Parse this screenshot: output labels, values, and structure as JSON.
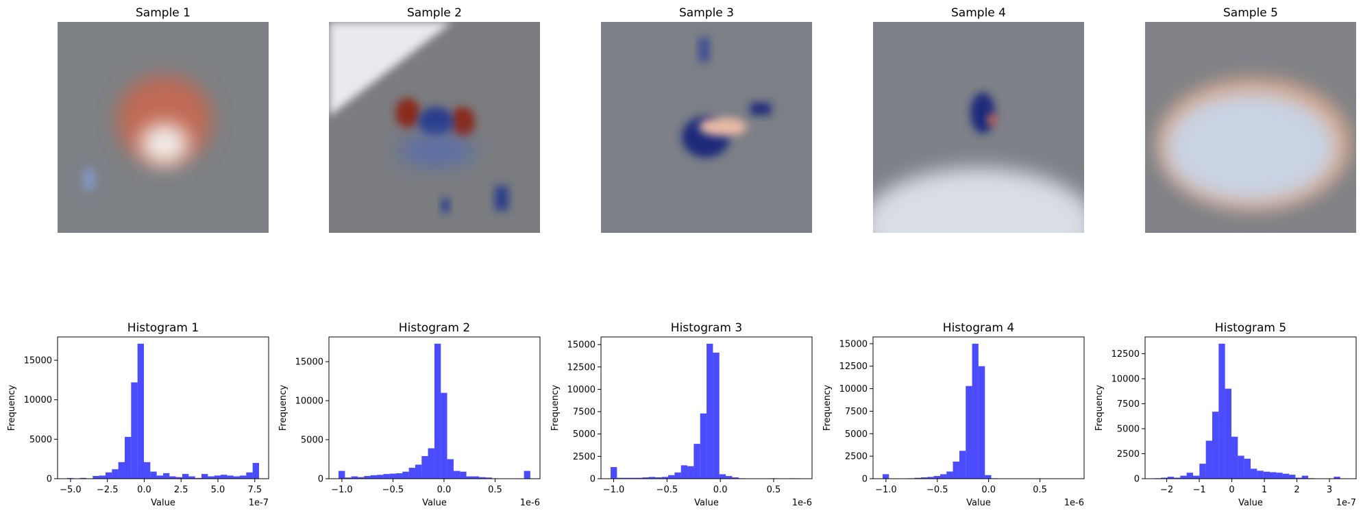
{
  "chart_data": [
    {
      "type": "image",
      "title": "Sample 1"
    },
    {
      "type": "image",
      "title": "Sample 2"
    },
    {
      "type": "image",
      "title": "Sample 3"
    },
    {
      "type": "image",
      "title": "Sample 4"
    },
    {
      "type": "image",
      "title": "Sample 5"
    },
    {
      "type": "histogram",
      "title": "Histogram 1",
      "xlabel": "Value",
      "ylabel": "Frequency",
      "x_offset_label": "1e-7",
      "color": "blue",
      "alpha": 0.7,
      "bins": [
        -5.23,
        -4.796,
        -4.362,
        -3.928,
        -3.494,
        -3.06,
        -2.626,
        -2.192,
        -1.758,
        -1.324,
        -0.89,
        -0.456,
        -0.022,
        0.412,
        0.846,
        1.28,
        1.714,
        2.148,
        2.582,
        3.016,
        3.45,
        3.884,
        4.318,
        4.752,
        5.186,
        5.62,
        6.054,
        6.488,
        6.922,
        7.356,
        7.79
      ],
      "values": [
        80,
        0,
        100,
        0,
        350,
        400,
        800,
        1200,
        2100,
        5300,
        12200,
        17100,
        2100,
        900,
        400,
        700,
        300,
        200,
        600,
        300,
        100,
        600,
        300,
        400,
        500,
        400,
        300,
        400,
        800,
        2000
      ],
      "xlim": [
        -5.88,
        8.44
      ],
      "xticks": [
        {
          "value": -5,
          "label": "−5.0"
        },
        {
          "value": -2.5,
          "label": "−2.5"
        },
        {
          "value": 0,
          "label": "0.0"
        },
        2.5,
        {
          "value": 5,
          "label": "5.0"
        },
        7.5
      ],
      "ylim": [
        0,
        17955
      ],
      "yticks": [
        0,
        5000,
        10000,
        15000
      ]
    },
    {
      "type": "histogram",
      "title": "Histogram 2",
      "xlabel": "Value",
      "ylabel": "Frequency",
      "x_offset_label": "1e-6",
      "color": "blue",
      "alpha": 0.7,
      "bins": [
        -1.033,
        -0.97,
        -0.908,
        -0.845,
        -0.783,
        -0.72,
        -0.657,
        -0.595,
        -0.532,
        -0.47,
        -0.407,
        -0.344,
        -0.282,
        -0.219,
        -0.157,
        -0.094,
        -0.031,
        0.031,
        0.094,
        0.157,
        0.219,
        0.282,
        0.344,
        0.407,
        0.47,
        0.532,
        0.595,
        0.657,
        0.72,
        0.783,
        0.845
      ],
      "values": [
        1000,
        150,
        300,
        200,
        350,
        450,
        500,
        600,
        650,
        700,
        900,
        1400,
        1800,
        2900,
        3900,
        17300,
        11000,
        2500,
        1000,
        900,
        300,
        300,
        200,
        150,
        50,
        30,
        20,
        10,
        0,
        1000
      ],
      "xlim": [
        -1.127,
        0.94
      ],
      "xticks": [
        {
          "value": -1,
          "label": "−1.0"
        },
        {
          "value": -0.5,
          "label": "−0.5"
        },
        {
          "value": 0,
          "label": "0.0"
        },
        0.5
      ],
      "ylim": [
        0,
        18165
      ],
      "yticks": [
        0,
        5000,
        10000,
        15000
      ]
    },
    {
      "type": "histogram",
      "title": "Histogram 3",
      "xlabel": "Value",
      "ylabel": "Frequency",
      "x_offset_label": "1e-6",
      "color": "blue",
      "alpha": 0.7,
      "bins": [
        -1.029,
        -0.969,
        -0.909,
        -0.849,
        -0.789,
        -0.729,
        -0.669,
        -0.609,
        -0.549,
        -0.489,
        -0.429,
        -0.369,
        -0.309,
        -0.249,
        -0.189,
        -0.129,
        -0.069,
        -0.009,
        0.051,
        0.111,
        0.171,
        0.231,
        0.291,
        0.351,
        0.411,
        0.471,
        0.531,
        0.591,
        0.651,
        0.711,
        0.771
      ],
      "values": [
        1300,
        100,
        100,
        100,
        100,
        150,
        200,
        150,
        200,
        400,
        700,
        1500,
        1400,
        3900,
        7300,
        15100,
        14100,
        500,
        300,
        150,
        50,
        30,
        20,
        10,
        0,
        50,
        20,
        0,
        50,
        30
      ],
      "xlim": [
        -1.119,
        0.86
      ],
      "xticks": [
        {
          "value": -1,
          "label": "−1.0"
        },
        {
          "value": -0.5,
          "label": "−0.5"
        },
        {
          "value": 0,
          "label": "0.0"
        },
        0.5
      ],
      "ylim": [
        0,
        15855
      ],
      "yticks": [
        0,
        2500,
        5000,
        7500,
        10000,
        12500,
        15000
      ]
    },
    {
      "type": "histogram",
      "title": "Histogram 4",
      "xlabel": "Value",
      "ylabel": "Frequency",
      "x_offset_label": "1e-6",
      "color": "blue",
      "alpha": 0.7,
      "bins": [
        -1.033,
        -0.971,
        -0.908,
        -0.846,
        -0.784,
        -0.722,
        -0.659,
        -0.597,
        -0.535,
        -0.472,
        -0.41,
        -0.348,
        -0.285,
        -0.223,
        -0.161,
        -0.099,
        -0.036,
        0.026,
        0.088,
        0.151,
        0.213,
        0.275,
        0.338,
        0.4,
        0.462,
        0.525,
        0.587,
        0.649,
        0.711,
        0.774,
        0.836
      ],
      "values": [
        500,
        0,
        10,
        20,
        50,
        100,
        150,
        200,
        300,
        500,
        800,
        1900,
        3100,
        10300,
        15000,
        12500,
        400,
        50,
        20,
        10,
        0,
        30,
        0,
        0,
        10,
        30,
        0,
        20,
        0,
        10
      ],
      "xlim": [
        -1.126,
        0.93
      ],
      "xticks": [
        {
          "value": -1,
          "label": "−1.0"
        },
        {
          "value": -0.5,
          "label": "−0.5"
        },
        {
          "value": 0,
          "label": "0.0"
        },
        0.5
      ],
      "ylim": [
        0,
        15750
      ],
      "yticks": [
        0,
        2500,
        5000,
        7500,
        10000,
        12500,
        15000
      ]
    },
    {
      "type": "histogram",
      "title": "Histogram 5",
      "xlabel": "Value",
      "ylabel": "Frequency",
      "x_offset_label": "1e-7",
      "color": "blue",
      "alpha": 0.7,
      "bins": [
        -2.37,
        -2.174,
        -1.977,
        -1.781,
        -1.584,
        -1.388,
        -1.191,
        -0.995,
        -0.798,
        -0.602,
        -0.405,
        -0.209,
        -0.012,
        0.185,
        0.381,
        0.578,
        0.774,
        0.971,
        1.167,
        1.364,
        1.56,
        1.757,
        1.953,
        2.15,
        2.346,
        2.543,
        2.739,
        2.936,
        3.132,
        3.329,
        3.525
      ],
      "values": [
        50,
        100,
        200,
        100,
        300,
        600,
        300,
        1500,
        3800,
        6700,
        13500,
        9000,
        4200,
        2300,
        2000,
        1000,
        800,
        700,
        650,
        600,
        500,
        400,
        100,
        300,
        50,
        0,
        0,
        0,
        200,
        0
      ],
      "xlim": [
        -2.665,
        3.82
      ],
      "xticks": [
        {
          "value": -2,
          "label": "−2"
        },
        {
          "value": -1,
          "label": "−1"
        },
        0,
        1,
        2,
        3
      ],
      "ylim": [
        0,
        14175
      ],
      "yticks": [
        0,
        2500,
        5000,
        7500,
        10000,
        12500
      ]
    }
  ]
}
